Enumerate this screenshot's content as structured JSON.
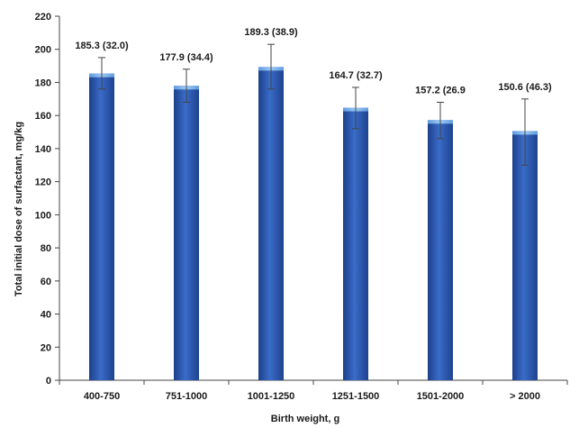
{
  "chart_data": {
    "type": "bar",
    "title": "",
    "xlabel": "Birth weight, g",
    "ylabel": "Total initial dose of surfactant, mg/kg",
    "ylim": [
      0,
      220
    ],
    "yticks": [
      0,
      20,
      40,
      60,
      80,
      100,
      120,
      140,
      160,
      180,
      200,
      220
    ],
    "grid": false,
    "legend": "none",
    "bar_color": "#2f5db8",
    "categories": [
      "400-750",
      "751-1000",
      "1001-1250",
      "1251-1500",
      "1501-2000",
      "> 2000"
    ],
    "values": [
      185.3,
      177.9,
      189.3,
      164.7,
      157.2,
      150.6
    ],
    "error_bar_low": [
      176,
      168,
      176,
      152,
      146,
      130
    ],
    "error_bar_high": [
      195,
      188,
      203,
      177,
      168,
      170
    ],
    "data_labels": [
      "185.3 (32.0)",
      "177.9 (34.4)",
      "189.3 (38.9)",
      "164.7 (32.7)",
      "157.2 (26.9",
      "150.6 (46.3)"
    ]
  }
}
